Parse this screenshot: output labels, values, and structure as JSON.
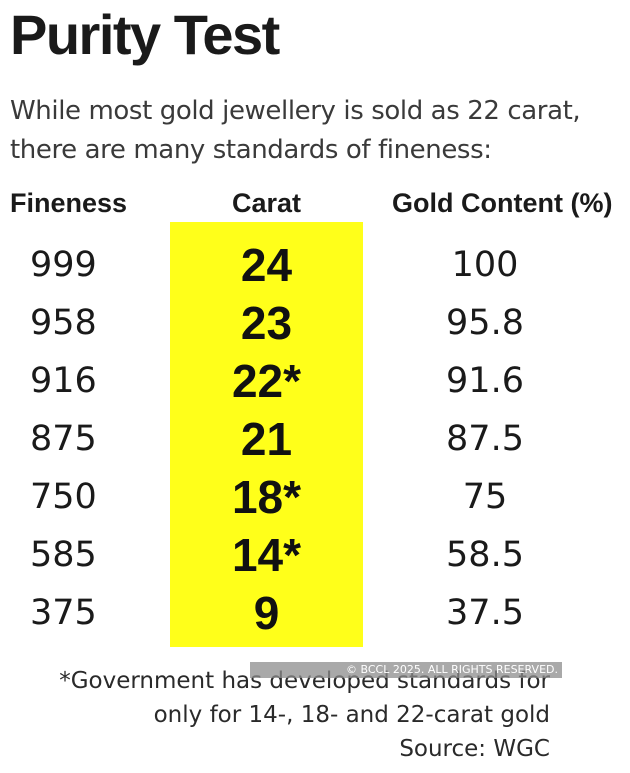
{
  "title": "Purity Test",
  "subtitle": {
    "line1": "While most gold jewellery is sold as 22 carat,",
    "line2": "there are many standards of fineness:"
  },
  "headers": {
    "fineness": "Fineness",
    "carat": "Carat",
    "gold_content": "Gold Content (%)"
  },
  "rows": [
    {
      "fineness": "999",
      "carat": "24",
      "gold": "100"
    },
    {
      "fineness": "958",
      "carat": "23",
      "gold": "95.8"
    },
    {
      "fineness": "916",
      "carat": "22*",
      "gold": "91.6"
    },
    {
      "fineness": "875",
      "carat": "21",
      "gold": "87.5"
    },
    {
      "fineness": "750",
      "carat": "18*",
      "gold": "75"
    },
    {
      "fineness": "585",
      "carat": "14*",
      "gold": "58.5"
    },
    {
      "fineness": "375",
      "carat": "9",
      "gold": "37.5"
    }
  ],
  "footnote": {
    "line1": "*Government has developed standards for",
    "line2": "only for 14-, 18- and 22-carat gold",
    "source": "Source: WGC"
  },
  "watermark": "© BCCL 2025. ALL RIGHTS RESERVED.",
  "colors": {
    "highlight": "#ffff1a",
    "text": "#1a1a1a"
  }
}
